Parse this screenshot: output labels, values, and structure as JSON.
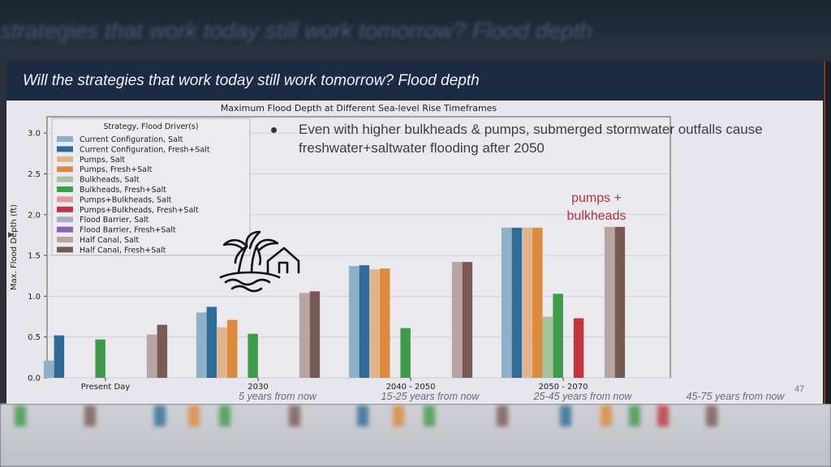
{
  "background": {
    "title": "strategies that work today still work tomorrow? Flood depth"
  },
  "slide": {
    "title": "Will the strategies that work today still work tomorrow? Flood depth",
    "bullet": "Even with higher bulkheads & pumps, submerged stormwater outfalls cause freshwater+saltwater flooding after 2050",
    "annotation": "pumps +\nbulkheads",
    "subtitles": [
      "5 years from now",
      "15-25 years from now",
      "25-45 years from now",
      "45-75 years from now"
    ],
    "page_number": "47",
    "icon": "palm-island-rising-water-icon"
  },
  "chart_data": {
    "type": "bar",
    "title": "Maximum Flood Depth at Different Sea-level Rise Timeframes",
    "xlabel": "",
    "ylabel": "Max. Flood Depth (ft)",
    "ylim": [
      0,
      3.2
    ],
    "yticks": [
      "0.0",
      "0.5",
      "1.0",
      "1.5",
      "2.0",
      "2.5",
      "3.0"
    ],
    "categories": [
      "Present Day",
      "2030",
      "2040 - 2050",
      "2050 - 2070"
    ],
    "legend_title": "Strategy, Flood Driver(s)",
    "legend_position": "upper-left",
    "grid": true,
    "series": [
      {
        "name": "Current Configuration, Salt",
        "color": "#8fb0c8",
        "values": [
          0.21,
          0.8,
          1.37,
          1.84
        ]
      },
      {
        "name": "Current Configuration, Fresh+Salt",
        "color": "#2f6b96",
        "values": [
          0.52,
          0.87,
          1.38,
          1.84
        ]
      },
      {
        "name": "Pumps, Salt",
        "color": "#e0b38f",
        "values": [
          0,
          0.62,
          1.33,
          1.84
        ]
      },
      {
        "name": "Pumps, Fresh+Salt",
        "color": "#db8a3e",
        "values": [
          0,
          0.71,
          1.34,
          1.84
        ]
      },
      {
        "name": "Bulkheads, Salt",
        "color": "#a4c49a",
        "values": [
          0,
          0,
          0,
          0.75
        ]
      },
      {
        "name": "Bulkheads, Fresh+Salt",
        "color": "#3f9a4a",
        "values": [
          0.47,
          0.54,
          0.61,
          1.03
        ]
      },
      {
        "name": "Pumps+Bulkheads, Salt",
        "color": "#de9a9d",
        "values": [
          0,
          0,
          0,
          0
        ]
      },
      {
        "name": "Pumps+Bulkheads, Fresh+Salt",
        "color": "#c2353e",
        "values": [
          0,
          0,
          0,
          0.73
        ]
      },
      {
        "name": "Flood Barrier, Salt",
        "color": "#b1a9cc",
        "values": [
          0,
          0,
          0,
          0
        ]
      },
      {
        "name": "Flood Barrier, Fresh+Salt",
        "color": "#8a62b8",
        "values": [
          0,
          0,
          0,
          0
        ]
      },
      {
        "name": "Half Canal, Salt",
        "color": "#b8a4a0",
        "values": [
          0.53,
          1.04,
          1.42,
          1.85
        ]
      },
      {
        "name": "Half Canal, Fresh+Salt",
        "color": "#7a5a54",
        "values": [
          0.65,
          1.06,
          1.42,
          1.85
        ]
      }
    ]
  }
}
